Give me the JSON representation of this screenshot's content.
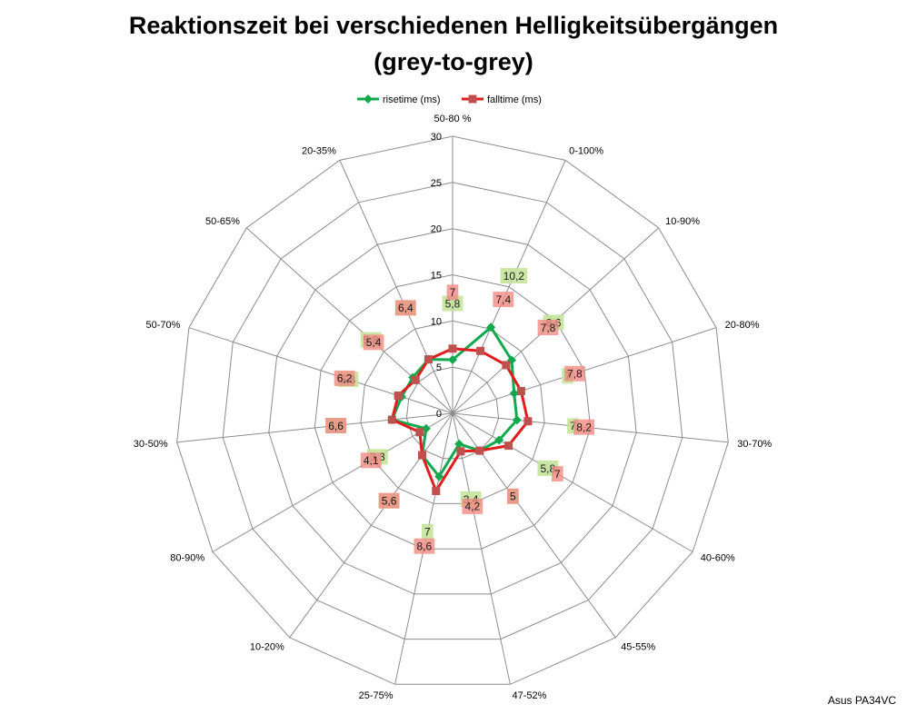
{
  "chart_data": {
    "type": "radar",
    "title": "Reaktionszeit bei verschiedenen Helligkeitsübergängen",
    "subtitle": "(grey-to-grey)",
    "categories": [
      "50-80 %",
      "0-100%",
      "10-90%",
      "20-80%",
      "30-70%",
      "40-60%",
      "45-55%",
      "47-52%",
      "25-75%",
      "10-20%",
      "80-90%",
      "30-50%",
      "50-70%",
      "50-65%",
      "20-35%"
    ],
    "rlim": [
      0,
      30
    ],
    "rticks": [
      0,
      5,
      10,
      15,
      20,
      25,
      30
    ],
    "grid": true,
    "legend_position": "top",
    "series": [
      {
        "name": "risetime (ms)",
        "color": "#12a84c",
        "marker_color": "#12a84c",
        "label_fill": "#c3e39a",
        "values": [
          5.8,
          10.2,
          8.6,
          7,
          7,
          5.8,
          5,
          3.4,
          7,
          5.6,
          3.3,
          6.6,
          5.8,
          5.8,
          6.4
        ],
        "value_labels": [
          "5,8",
          "10,2",
          "8,6",
          "7",
          "7",
          "5,8",
          "5",
          "3,4",
          "7",
          "5,6",
          "3,3",
          "6,6",
          "5,8",
          "5,8",
          "6,4"
        ]
      },
      {
        "name": "falltime (ms)",
        "color": "#e01d1d",
        "marker_color": "#c0504d",
        "label_fill": "#f28a83",
        "values": [
          7,
          7.4,
          7.8,
          7.8,
          8.2,
          7,
          5,
          4.2,
          8.6,
          5.6,
          4.1,
          6.6,
          6.2,
          5.4,
          6.4
        ],
        "value_labels": [
          "7",
          "7,4",
          "7,8",
          "7,8",
          "8,2",
          "7",
          "5",
          "4,2",
          "8,6",
          "5,6",
          "4,1",
          "6,6",
          "6,2",
          "5,4",
          "6,4"
        ]
      }
    ]
  },
  "footer": {
    "text": "Asus PA34VC"
  }
}
